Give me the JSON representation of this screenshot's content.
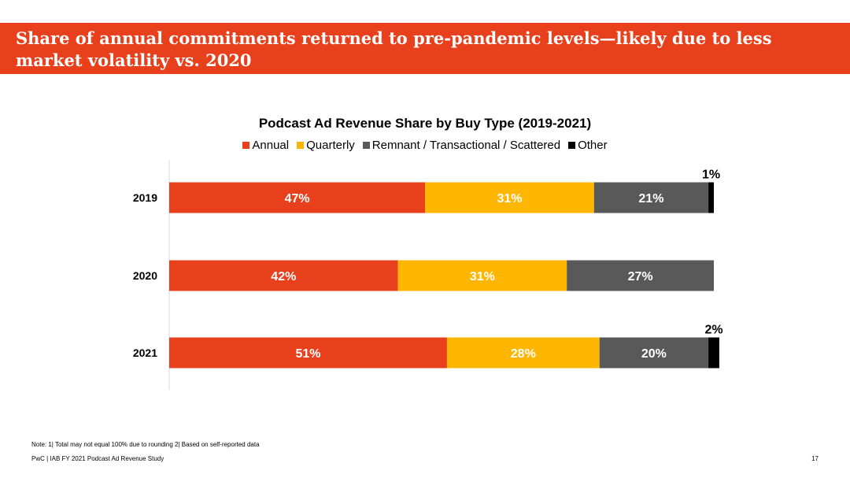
{
  "header": {
    "title": "Share of annual commitments returned to pre-pandemic levels—likely due to less market volatility vs. 2020"
  },
  "colors": {
    "brand": "#e8401c",
    "annual": "#e8401c",
    "quarterly": "#ffb600",
    "remnant": "#595959",
    "other": "#000000"
  },
  "chart_data": {
    "type": "bar",
    "orientation": "horizontal",
    "stacked": true,
    "title": "Podcast Ad Revenue Share by Buy Type (2019-2021)",
    "categories": [
      "2019",
      "2020",
      "2021"
    ],
    "series": [
      {
        "name": "Annual",
        "values": [
          47,
          42,
          51
        ],
        "labels": [
          "47%",
          "42%",
          "51%"
        ],
        "color": "#e8401c"
      },
      {
        "name": "Quarterly",
        "values": [
          31,
          31,
          28
        ],
        "labels": [
          "31%",
          "31%",
          "28%"
        ],
        "color": "#ffb600"
      },
      {
        "name": "Remnant / Transactional / Scattered",
        "values": [
          21,
          27,
          20
        ],
        "labels": [
          "21%",
          "27%",
          "20%"
        ],
        "color": "#595959"
      },
      {
        "name": "Other",
        "values": [
          1,
          0,
          2
        ],
        "labels": [
          "1%",
          "",
          "2%"
        ],
        "color": "#000000"
      }
    ],
    "legend_position": "top",
    "grid": false,
    "xlim": [
      0,
      100
    ]
  },
  "footer": {
    "note": "Note: 1| Total may not equal 100% due to rounding 2| Based on self-reported data",
    "source": "PwC  |  IAB FY 2021 Podcast Ad Revenue Study",
    "page": "17"
  }
}
